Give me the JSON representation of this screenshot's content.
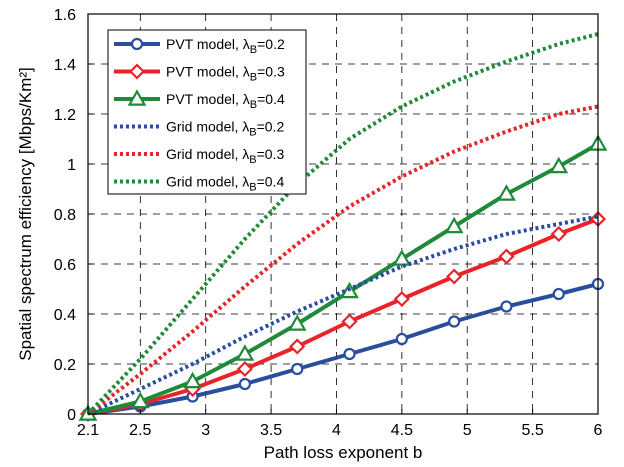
{
  "chart_data": {
    "type": "line",
    "xlabel": "Path loss exponent b",
    "ylabel": "Spatial spectrum efficiency [Mbps/Km²]",
    "xlim": [
      2.1,
      6
    ],
    "ylim": [
      0,
      1.6
    ],
    "xticks": [
      2.1,
      2.5,
      3,
      3.5,
      4,
      4.5,
      5,
      5.5,
      6
    ],
    "xtick_labels": [
      "2.1",
      "2.5",
      "3",
      "3.5",
      "4",
      "4.5",
      "5",
      "5.5",
      "6"
    ],
    "yticks": [
      0,
      0.2,
      0.4,
      0.6,
      0.8,
      1,
      1.2,
      1.4,
      1.6
    ],
    "ytick_labels": [
      "0",
      "0.2",
      "0.4",
      "0.6",
      "0.8",
      "1",
      "1.2",
      "1.4",
      "1.6"
    ],
    "grid": true,
    "legend_position": "top-left",
    "x": [
      2.1,
      2.5,
      2.9,
      3.3,
      3.7,
      4.1,
      4.5,
      4.9,
      5.3,
      5.7,
      6.0
    ],
    "series": [
      {
        "name": "PVT model, λ",
        "sub": "B",
        "suffix": "=0.2",
        "color": "#2a4d9e",
        "style": "solid",
        "marker": "circle",
        "values": [
          0.0,
          0.03,
          0.07,
          0.12,
          0.18,
          0.24,
          0.3,
          0.37,
          0.43,
          0.48,
          0.52
        ]
      },
      {
        "name": "PVT model, λ",
        "sub": "B",
        "suffix": "=0.3",
        "color": "#e8232a",
        "style": "solid",
        "marker": "diamond",
        "values": [
          0.0,
          0.04,
          0.1,
          0.18,
          0.27,
          0.37,
          0.46,
          0.55,
          0.63,
          0.72,
          0.78
        ]
      },
      {
        "name": "PVT model, λ",
        "sub": "B",
        "suffix": "=0.4",
        "color": "#1f8a3a",
        "style": "solid",
        "marker": "triangle",
        "values": [
          0.0,
          0.05,
          0.13,
          0.24,
          0.36,
          0.49,
          0.62,
          0.75,
          0.88,
          0.99,
          1.08
        ]
      },
      {
        "name": "Grid model, λ",
        "sub": "B",
        "suffix": "=0.2",
        "color": "#2a4d9e",
        "style": "dotted",
        "marker": "none",
        "values": [
          0.0,
          0.1,
          0.2,
          0.31,
          0.41,
          0.5,
          0.59,
          0.66,
          0.72,
          0.76,
          0.79
        ]
      },
      {
        "name": "Grid model, λ",
        "sub": "B",
        "suffix": "=0.3",
        "color": "#e8232a",
        "style": "dotted",
        "marker": "none",
        "values": [
          0.0,
          0.16,
          0.33,
          0.51,
          0.68,
          0.83,
          0.95,
          1.05,
          1.13,
          1.2,
          1.23
        ]
      },
      {
        "name": "Grid model, λ",
        "sub": "B",
        "suffix": "=0.4",
        "color": "#1f8a3a",
        "style": "dotted",
        "marker": "none",
        "values": [
          0.0,
          0.22,
          0.46,
          0.7,
          0.92,
          1.1,
          1.23,
          1.33,
          1.41,
          1.48,
          1.52
        ]
      }
    ]
  }
}
